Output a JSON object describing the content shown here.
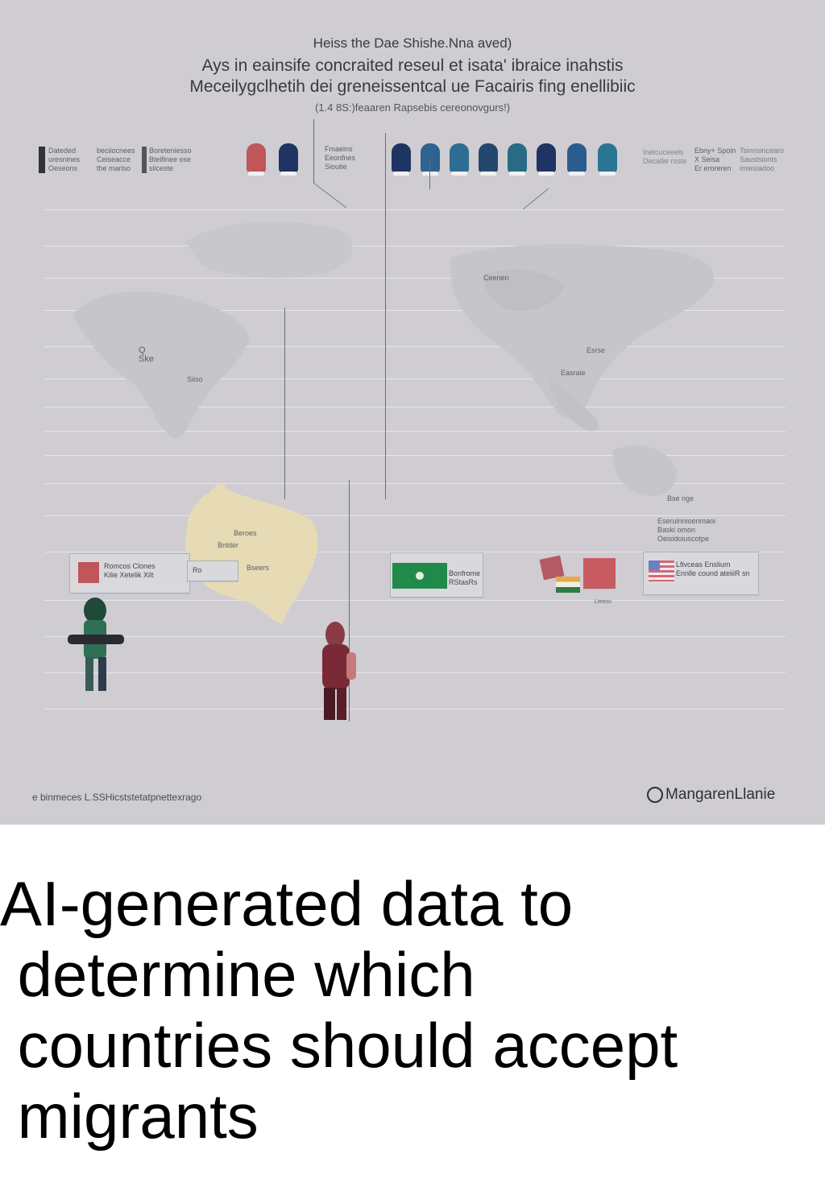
{
  "header": {
    "line1": "Heiss the Dae Shishe.Nna aved)",
    "line2": "Ays in eainsife concraited reseul et isata' ibraice inahstis",
    "line3": "Meceilygclhetih dei greneissentcal ue Facairis fing enellibiic",
    "line4": "(1.4 8S:)feaaren Rapsebis cereonovgurs!)"
  },
  "legend": {
    "left_block": "Dateded\nuresnines\nOeseons",
    "mid_block": "beciiocnees\nCeiseacce\nthe mariso",
    "right_block": "Boreteniesso\nBteifinee ose\nsliceste",
    "center_note": "Fmaeins\nEeonfnes\nSioutie",
    "far_right_1": "Inetcuceeels\nDecallie roste",
    "far_right_2": "Ebny+ Spoin\nX Seisa\nEr eroreren",
    "far_right_3": "Tsinnsincearo\nSaustsionts\nimiesiadoo"
  },
  "heads": {
    "colors": [
      "#c0555a",
      "#1f3463",
      "#1f3463",
      "#2e6390",
      "#2e6d93",
      "#23486e",
      "#2a6a86",
      "#1f3463",
      "#2b5c8e",
      "#2a7591"
    ]
  },
  "map_labels": {
    "na_small": "Q\nSke",
    "na_label": "Siiso",
    "asia_label": "Ceenen",
    "asia_label2": "Esrse",
    "asia_label3": "Easraie",
    "aus_label": "Bse rige",
    "yellow_1": "Beroes",
    "yellow_2": "Bnlder",
    "yellow_3": "Bseers"
  },
  "cards": {
    "card1": "Romcos Clones\nKilie Xetelik Xilt",
    "card1_side": "Ro",
    "card2": "Bonfrome\nRStasRs",
    "card3_note": "Lteeso",
    "card4": "Lfivceas Enslium\nEnnlle cound ateiiiR sn",
    "card4_top": "Eseruinnioenmaoi\nBaski omon\nOeisidoiuscotpe"
  },
  "footer": {
    "left": "e binmeces L.SSHicststetatpnettexrago",
    "right": "MangarenLlanie"
  },
  "caption": "AI-generated data to\n determine which\n countries should accept\n migrants",
  "colors": {
    "poster_bg": "#cfcdd1",
    "map_gray": "#c3c2c6",
    "accent_red": "#c0555a",
    "accent_green": "#1f8a4a",
    "accent_navy": "#1f3463"
  }
}
